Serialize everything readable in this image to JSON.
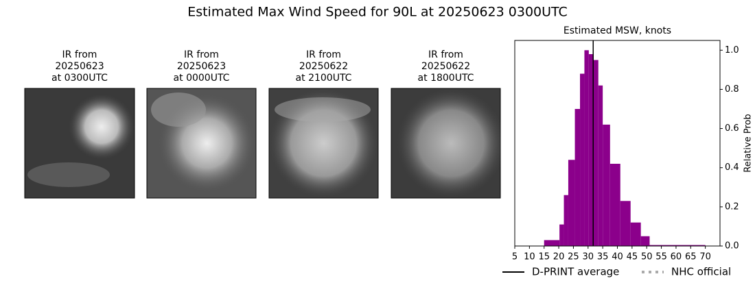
{
  "title": "Estimated Max Wind Speed for 90L at 20250623 0300UTC",
  "panels": [
    {
      "title": [
        "IR from",
        "20250623",
        "at 0300UTC"
      ]
    },
    {
      "title": [
        "IR from",
        "20250623",
        "at 0000UTC"
      ]
    },
    {
      "title": [
        "IR from",
        "20250622",
        "at 2100UTC"
      ]
    },
    {
      "title": [
        "IR from",
        "20250622",
        "at 1800UTC"
      ]
    }
  ],
  "chart_data": {
    "type": "histogram",
    "title": "Estimated MSW, knots",
    "ylabel": "Relative Prob",
    "bins": [
      15,
      20.25,
      21.75,
      23.25,
      25.5,
      27.25,
      28.75,
      30.25,
      31.75,
      33.5,
      35,
      37.5,
      41,
      44.5,
      48,
      51,
      70
    ],
    "values": [
      0.03,
      0.11,
      0.26,
      0.44,
      0.7,
      0.88,
      1.0,
      0.98,
      0.95,
      0.82,
      0.62,
      0.42,
      0.23,
      0.12,
      0.05,
      0.005
    ],
    "color": "#8b008b",
    "xlim": [
      5,
      75
    ],
    "xticks": [
      5,
      10,
      15,
      20,
      25,
      30,
      35,
      40,
      45,
      50,
      55,
      60,
      65,
      70
    ],
    "ylim": [
      0,
      1.05
    ],
    "yticks": [
      {
        "value": 0,
        "label": "0.0"
      },
      0.2,
      0.4,
      0.6,
      0.8,
      {
        "value": 1,
        "label": "1.0"
      }
    ],
    "average": {
      "name": "D-PRINT average",
      "value": 31.75,
      "color": "#000000"
    },
    "official": {
      "name": "NHC official",
      "color": "#aaaaaa"
    }
  }
}
